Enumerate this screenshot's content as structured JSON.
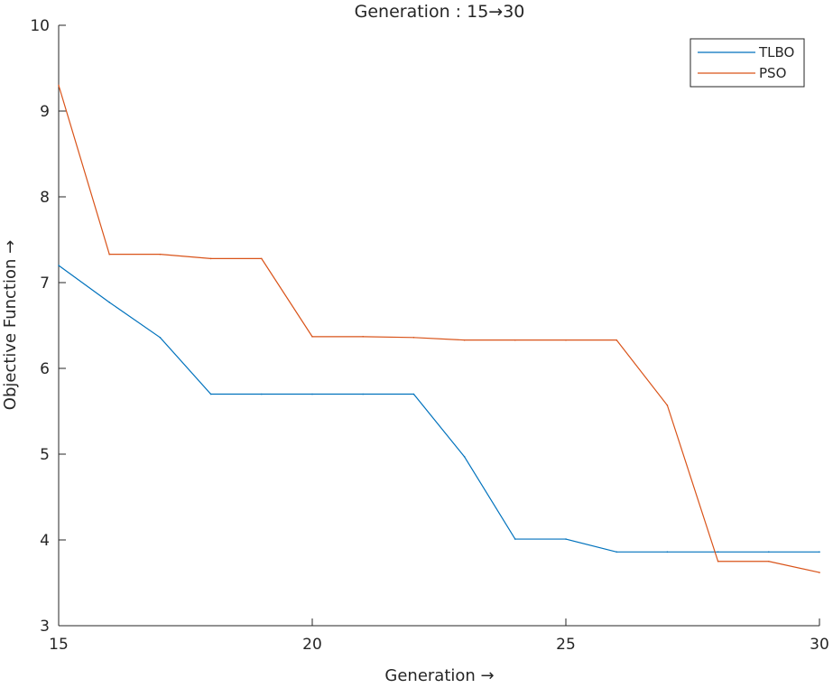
{
  "chart_data": {
    "type": "line",
    "title": "Generation : 15→30",
    "xlabel": "Generation →",
    "ylabel": "Objective Function →",
    "xlim": [
      15,
      30
    ],
    "ylim": [
      3,
      10
    ],
    "xticks": [
      15,
      20,
      25,
      30
    ],
    "yticks": [
      3,
      4,
      5,
      6,
      7,
      8,
      9,
      10
    ],
    "grid": false,
    "legend_position": "top-right",
    "x": [
      15,
      16,
      17,
      18,
      19,
      20,
      21,
      22,
      23,
      24,
      25,
      26,
      27,
      28,
      29,
      30
    ],
    "series": [
      {
        "name": "TLBO",
        "color": "#0072BD",
        "values": [
          7.2,
          6.77,
          6.36,
          5.7,
          5.7,
          5.7,
          5.7,
          5.7,
          4.97,
          4.01,
          4.01,
          3.86,
          3.86,
          3.86,
          3.86,
          3.86
        ]
      },
      {
        "name": "PSO",
        "color": "#D95319",
        "values": [
          9.3,
          7.33,
          7.33,
          7.28,
          7.28,
          6.37,
          6.37,
          6.36,
          6.33,
          6.33,
          6.33,
          6.33,
          5.57,
          3.75,
          3.75,
          3.62
        ]
      }
    ]
  }
}
